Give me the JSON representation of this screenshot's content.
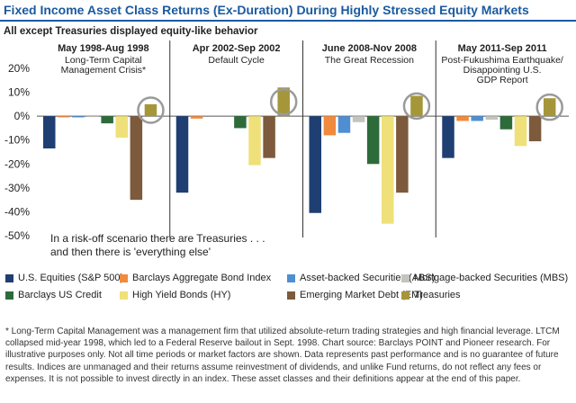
{
  "title": "Fixed Income Asset Class Returns (Ex-Duration) During Highly Stressed Equity Markets",
  "subtitle": "All except Treasuries displayed equity-like behavior",
  "chart_data": {
    "type": "bar",
    "ylim": [
      -50,
      20
    ],
    "yticks": [
      -50,
      -40,
      -30,
      -20,
      -10,
      0,
      10,
      20
    ],
    "ytick_labels": [
      "-50%",
      "-40%",
      "-30%",
      "-20%",
      "-10%",
      "0%",
      "10%",
      "20%"
    ],
    "groups": [
      {
        "period": "May 1998-Aug 1998",
        "event": [
          "Long-Term Capital",
          "Management Crisis*"
        ],
        "values": [
          -13.5,
          -0.5,
          -0.5,
          -0.3,
          -3,
          -9,
          -35,
          5
        ]
      },
      {
        "period": "Apr 2002-Sep 2002",
        "event": [
          "Default Cycle"
        ],
        "values": [
          -32,
          -1,
          0,
          0,
          -5,
          -20.5,
          -17.5,
          12
        ]
      },
      {
        "period": "June 2008-Nov 2008",
        "event": [
          "The Great Recession"
        ],
        "values": [
          -40.5,
          -8,
          -7,
          -2.5,
          -20,
          -45,
          -32,
          8.5
        ]
      },
      {
        "period": "May 2011-Sep 2011",
        "event": [
          "Post-Fukushima Earthquake/",
          "Disappointing U.S.",
          "GDP Report"
        ],
        "values": [
          -17.5,
          -2,
          -2,
          -1.5,
          -5.5,
          -12.5,
          -10.5,
          7.5
        ]
      }
    ],
    "series": [
      {
        "name": "U.S. Equities (S&P 500)",
        "color": "#1f3f73"
      },
      {
        "name": "Barclays Aggregate Bond Index",
        "color": "#f08a3c"
      },
      {
        "name": "Asset-backed Securities (ABS)",
        "color": "#4f8fd1"
      },
      {
        "name": "Mortgage-backed Securities (MBS)",
        "color": "#c4c4bf"
      },
      {
        "name": "Barclays US Credit",
        "color": "#2e6b3a"
      },
      {
        "name": "High Yield Bonds (HY)",
        "color": "#efe07a"
      },
      {
        "name": "Emerging Market Debt (EM)",
        "color": "#7d5a3c"
      },
      {
        "name": "Treasuries",
        "color": "#a5963a"
      }
    ],
    "highlighted_series": "Treasuries",
    "annotation": [
      "In a risk-off scenario there are Treasuries . . .",
      "and then there is 'everything else'"
    ]
  },
  "footnote": "* Long-Term Capital Management was a management firm that utilized absolute-return trading strategies and high financial leverage. LTCM collapsed mid-year 1998, which led to a Federal Reserve bailout in Sept. 1998. Chart source: Barclays POINT and Pioneer research. For illustrative purposes only. Not all time periods or market factors are shown. Data represents past performance and is no guarantee of future results. Indices are unmanaged and their returns assume reinvestment of dividends, and unlike Fund returns, do not reflect any fees or expenses. It is not possible to invest directly in an index. These asset classes and their definitions appear at the end of this paper."
}
